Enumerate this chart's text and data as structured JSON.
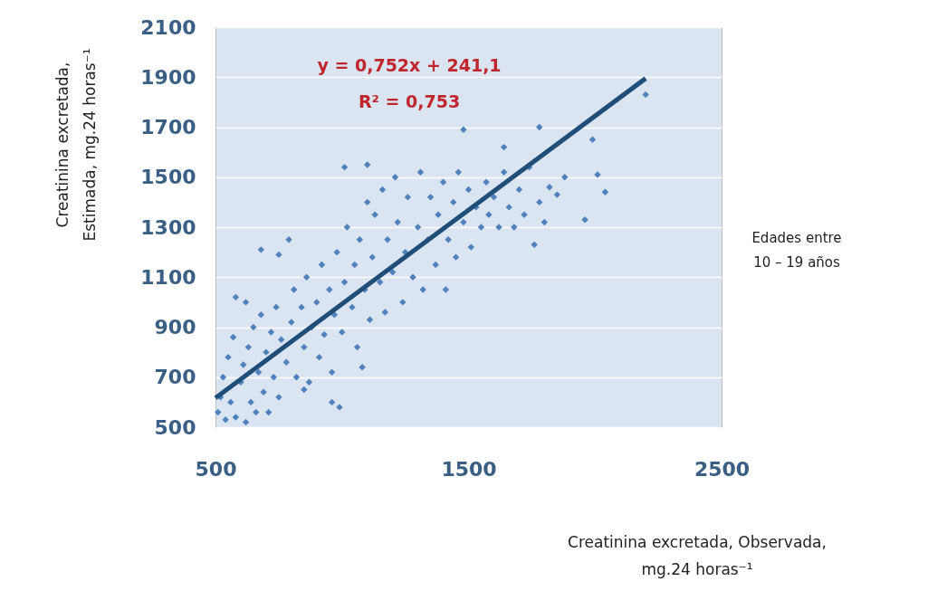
{
  "chart_data": {
    "type": "scatter",
    "xlabel": "Creatinina excretada, Observada, mg.24 horas⁻¹",
    "ylabel": "Creatinina excretada, Estimada, mg.24 horas⁻¹",
    "annotations": [
      "y = 0,752x + 241,1",
      "R² = 0,753",
      "Edades entre 10 – 19 años"
    ],
    "xlim": [
      500,
      2500
    ],
    "xticks": [
      500,
      1500,
      2500
    ],
    "ylim": [
      500,
      2100
    ],
    "yticks": [
      500,
      700,
      900,
      1100,
      1300,
      1500,
      1700,
      1900,
      2100
    ],
    "grid": "y",
    "legend": false,
    "series": [
      {
        "color": "#4f81bd",
        "marker": "diamond",
        "x": [
          510,
          520,
          530,
          540,
          550,
          560,
          570,
          580,
          600,
          610,
          620,
          630,
          640,
          650,
          660,
          670,
          680,
          690,
          700,
          710,
          720,
          730,
          740,
          750,
          760,
          780,
          800,
          810,
          820,
          840,
          850,
          860,
          870,
          880,
          900,
          910,
          920,
          930,
          950,
          960,
          970,
          980,
          1000,
          1010,
          1020,
          1040,
          1050,
          1060,
          1070,
          1090,
          1100,
          1110,
          1120,
          1130,
          1150,
          1160,
          1170,
          1180,
          1200,
          1210,
          1220,
          1240,
          1250,
          1260,
          1280,
          1300,
          1310,
          1320,
          1340,
          1350,
          1370,
          1380,
          1400,
          1410,
          1420,
          1440,
          1450,
          1460,
          1480,
          1500,
          1510,
          1530,
          1550,
          1570,
          1580,
          1600,
          1620,
          1640,
          1660,
          1680,
          1700,
          1720,
          1740,
          1760,
          1780,
          1800,
          1820,
          1850,
          1880,
          580,
          620,
          680,
          750,
          790,
          1010,
          1100,
          1480,
          1780,
          1640,
          1960,
          1990,
          2010,
          2040,
          2200,
          1080,
          960,
          990,
          850
        ],
        "values": [
          560,
          620,
          700,
          530,
          780,
          600,
          860,
          540,
          680,
          750,
          520,
          820,
          600,
          900,
          560,
          720,
          950,
          640,
          800,
          560,
          880,
          700,
          980,
          620,
          850,
          760,
          920,
          1050,
          700,
          980,
          820,
          1100,
          680,
          900,
          1000,
          780,
          1150,
          870,
          1050,
          720,
          950,
          1200,
          880,
          1080,
          1300,
          980,
          1150,
          820,
          1250,
          1050,
          1400,
          930,
          1180,
          1350,
          1080,
          1450,
          960,
          1250,
          1120,
          1500,
          1320,
          1000,
          1200,
          1420,
          1100,
          1300,
          1520,
          1050,
          1250,
          1420,
          1150,
          1350,
          1480,
          1050,
          1250,
          1400,
          1180,
          1520,
          1320,
          1450,
          1220,
          1380,
          1300,
          1480,
          1350,
          1420,
          1300,
          1520,
          1380,
          1300,
          1450,
          1350,
          1540,
          1230,
          1400,
          1320,
          1460,
          1430,
          1500,
          1020,
          1000,
          1210,
          1190,
          1250,
          1540,
          1550,
          1690,
          1700,
          1620,
          1330,
          1650,
          1510,
          1440,
          1830,
          740,
          600,
          580,
          650
        ]
      },
      {
        "type": "line",
        "color": "#1f4e79",
        "marker": "none",
        "x": [
          500,
          2200
        ],
        "values": [
          617,
          1895
        ]
      }
    ]
  }
}
